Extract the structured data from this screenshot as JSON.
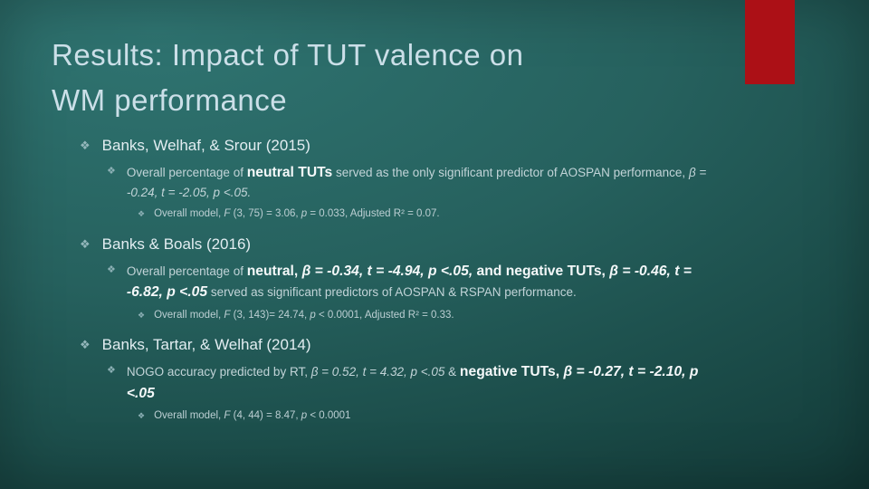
{
  "slide": {
    "title": {
      "line1": "Results: Impact of TUT valence on",
      "line2": "WM performance"
    },
    "accent_color": "#ac1016",
    "background_color_top": "#2f7471",
    "background_color_bottom": "#113634",
    "bullet_glyph": "❖",
    "groups": [
      {
        "heading": "Banks, Welhaf, & Srour (2015)",
        "body": [
          {
            "t": "Overall percentage of "
          },
          {
            "t": "neutral TUTs",
            "b": true
          },
          {
            "t": " served as the only significant predictor of AOSPAN performance, "
          },
          {
            "t": "β = -0.24, t = -2.05, p <.05.",
            "i": true
          }
        ],
        "model": [
          {
            "t": "Overall model, "
          },
          {
            "t": "F",
            "i": true
          },
          {
            "t": " (3, 75) = 3.06, "
          },
          {
            "t": "p",
            "i": true
          },
          {
            "t": " = 0.033, Adjusted R² = 0.07."
          }
        ]
      },
      {
        "heading": "Banks & Boals (2016)",
        "body": [
          {
            "t": "Overall percentage of "
          },
          {
            "t": "neutral, ",
            "b": true
          },
          {
            "t": "β = -0.34, t = -4.94, p <.05,",
            "b": true,
            "i": true
          },
          {
            "t": " and negative TUTs, ",
            "b": true
          },
          {
            "t": "β = -0.46, t = -6.82, p <.05",
            "b": true,
            "i": true
          },
          {
            "t": " served as significant predictors of AOSPAN & RSPAN performance."
          }
        ],
        "model": [
          {
            "t": "Overall model, "
          },
          {
            "t": "F",
            "i": true
          },
          {
            "t": " (3, 143)= 24.74, "
          },
          {
            "t": "p",
            "i": true
          },
          {
            "t": " < 0.0001, Adjusted R² = 0.33."
          }
        ]
      },
      {
        "heading": "Banks, Tartar, & Welhaf (2014)",
        "body": [
          {
            "t": "NOGO accuracy predicted by RT, "
          },
          {
            "t": "β = 0.52, t = 4.32, p <.05",
            "i": true
          },
          {
            "t": " & "
          },
          {
            "t": "negative TUTs, ",
            "b": true
          },
          {
            "t": "β = -0.27, t = -2.10, p <.05",
            "b": true,
            "i": true
          }
        ],
        "model": [
          {
            "t": "Overall model, "
          },
          {
            "t": "F",
            "i": true
          },
          {
            "t": " (4, 44) = 8.47, "
          },
          {
            "t": "p",
            "i": true
          },
          {
            "t": " < 0.0001"
          }
        ]
      }
    ]
  }
}
